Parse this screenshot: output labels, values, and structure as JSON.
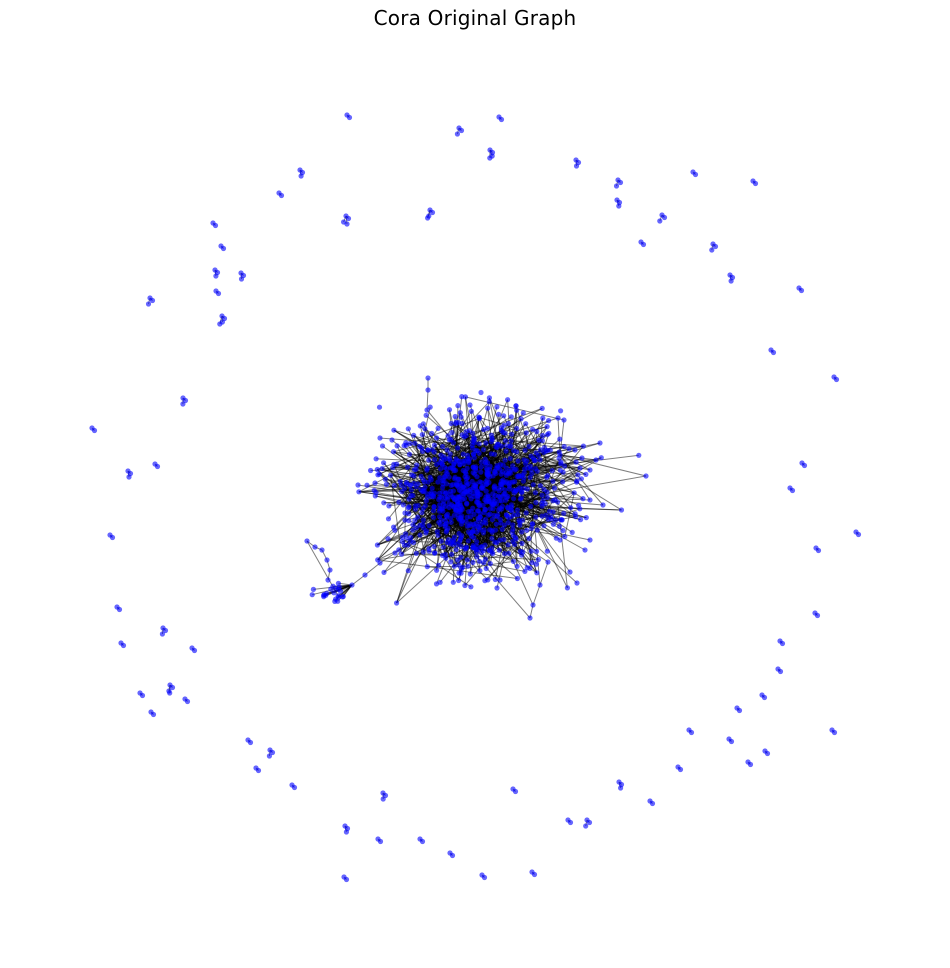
{
  "figure": {
    "title": "Cora Original Graph"
  },
  "graph": {
    "layout": "spring",
    "node_color": "#0000ff",
    "edge_color": "#000000",
    "node_alpha": 0.6,
    "edge_alpha": 0.5,
    "axes": "off"
  }
}
